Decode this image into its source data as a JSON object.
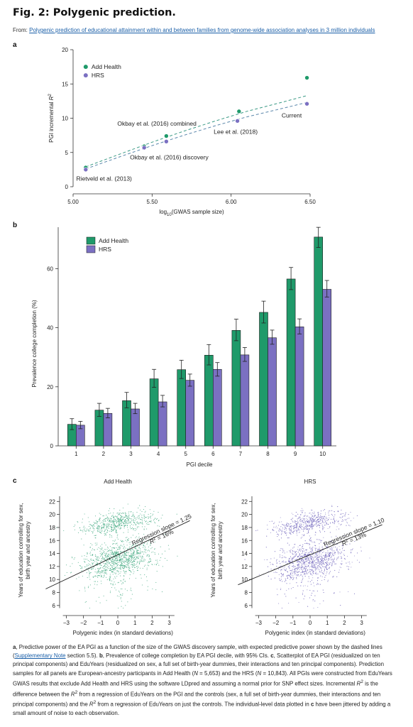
{
  "figure": {
    "title": "Fig. 2: Polygenic prediction.",
    "source_prefix": "From:",
    "source_link": "Polygenic prediction of educational attainment within and between families from genome-wide association analyses in 3 million individuals"
  },
  "colors": {
    "add_health": "#1f9a6a",
    "hrs": "#7b70c2",
    "text": "#222222",
    "link": "#1a5fa8"
  },
  "panels": {
    "a": {
      "letter": "a"
    },
    "b": {
      "letter": "b"
    },
    "c": {
      "letter": "c",
      "left_title": "Add Health",
      "right_title": "HRS"
    }
  },
  "chart_data": [
    {
      "panel": "a",
      "type": "scatter",
      "xlabel_prefix": "log",
      "xlabel_sub": "10",
      "xlabel_suffix": "(GWAS sample size)",
      "ylabel_prefix": "PGI incremental ",
      "ylabel_italic": "R",
      "ylabel_sup": "2",
      "xlim": [
        5.0,
        6.5
      ],
      "ylim": [
        0,
        20
      ],
      "xticks": [
        "5.00",
        "5.50",
        "6.00",
        "6.50"
      ],
      "yticks": [
        "0",
        "5",
        "10",
        "15",
        "20"
      ],
      "legend": [
        "Add Health",
        "HRS"
      ],
      "series": [
        {
          "name": "Add Health",
          "x": [
            5.08,
            5.45,
            5.59,
            6.05,
            6.48
          ],
          "y": [
            2.8,
            5.9,
            7.4,
            11.0,
            15.9
          ]
        },
        {
          "name": "HRS",
          "x": [
            5.08,
            5.45,
            5.59,
            6.04,
            6.48
          ],
          "y": [
            2.5,
            5.7,
            6.6,
            9.6,
            12.1
          ]
        }
      ],
      "fit_lines": [
        {
          "name": "Add Health",
          "x": [
            5.08,
            5.3,
            5.5,
            5.7,
            5.9,
            6.1,
            6.3,
            6.48
          ],
          "y": [
            2.9,
            4.8,
            6.5,
            8.1,
            9.6,
            11.0,
            12.2,
            13.3
          ]
        },
        {
          "name": "HRS",
          "x": [
            5.08,
            5.3,
            5.5,
            5.7,
            5.9,
            6.1,
            6.3,
            6.48
          ],
          "y": [
            2.6,
            4.4,
            6.0,
            7.5,
            8.9,
            10.2,
            11.3,
            12.3
          ]
        }
      ],
      "annotations": [
        {
          "text": "Rietveld et al. (2013)",
          "x": 5.02,
          "y": 0.9
        },
        {
          "text": "Okbay et al. (2016) discovery",
          "x": 5.36,
          "y": 4.0
        },
        {
          "text": "Okbay et al. (2016) combined",
          "x": 5.28,
          "y": 8.9
        },
        {
          "text": "Lee et al. (2018)",
          "x": 5.89,
          "y": 7.7
        },
        {
          "text": "Current",
          "x": 6.32,
          "y": 10.1
        }
      ]
    },
    {
      "panel": "b",
      "type": "bar",
      "xlabel": "PGI decile",
      "ylabel": "Prevalence college completion (%)",
      "ylim": [
        0,
        75
      ],
      "yticks": [
        "0",
        "20",
        "40",
        "60"
      ],
      "categories": [
        "1",
        "2",
        "3",
        "4",
        "5",
        "6",
        "7",
        "8",
        "9",
        "10"
      ],
      "legend": [
        "Add Health",
        "HRS"
      ],
      "series": [
        {
          "name": "Add Health",
          "values": [
            7.3,
            12.1,
            15.3,
            22.7,
            25.8,
            30.7,
            39.1,
            45.2,
            56.5,
            70.7
          ],
          "ci_low": [
            5.5,
            10.0,
            12.9,
            19.8,
            22.8,
            27.4,
            35.6,
            41.6,
            52.9,
            67.2
          ],
          "ci_high": [
            9.2,
            14.4,
            18.1,
            25.9,
            29.0,
            34.3,
            42.9,
            49.0,
            60.4,
            74.0
          ]
        },
        {
          "name": "HRS",
          "values": [
            7.0,
            11.0,
            12.5,
            14.9,
            22.2,
            25.9,
            30.8,
            36.6,
            40.3,
            53.0
          ],
          "ci_low": [
            5.8,
            9.5,
            10.9,
            13.2,
            20.2,
            23.6,
            28.6,
            34.4,
            37.9,
            50.4
          ],
          "ci_high": [
            8.3,
            12.7,
            14.4,
            17.1,
            24.3,
            28.2,
            33.3,
            39.2,
            43.0,
            56.0
          ]
        }
      ]
    },
    {
      "panel": "c",
      "type": "scatter",
      "xlabel": "Polygenic index (in standard deviations)",
      "ylabel_line1": "Years of education controlling for sex,",
      "ylabel_line2": "birth year and ancestry",
      "xticks": [
        "−3",
        "−2",
        "−1",
        "0",
        "1",
        "2",
        "3"
      ],
      "yticks": [
        "6",
        "8",
        "10",
        "12",
        "14",
        "16",
        "18",
        "20",
        "22"
      ],
      "xlim": [
        -4.3,
        4.3
      ],
      "ylim": [
        5,
        24
      ],
      "plots": [
        {
          "name": "Add Health",
          "slope": 1.25,
          "r2_percent": 16,
          "slope_label": "Regression slope = 1.25",
          "r2_prefix": "R",
          "r2_suffix": " = 16%",
          "cluster_high_mean": 18.8,
          "cluster_low_mean": 13.0,
          "n_points": 1700
        },
        {
          "name": "HRS",
          "slope": 1.1,
          "r2_percent": 13,
          "slope_label": "Regression slope = 1.10",
          "r2_prefix": "R",
          "r2_suffix": " = 13%",
          "cluster_high_mean": 18.8,
          "cluster_low_mean": 12.7,
          "n_points": 2600
        }
      ]
    }
  ],
  "caption": {
    "p1_a": "a",
    "p1_text1": ", Predictive power of the EA PGI as a function of the size of the GWAS discovery sample, with expected predictive power shown by the dashed lines (",
    "p1_link": "Supplementary Note",
    "p1_text2": " section 5.5). ",
    "p1_b": "b",
    "p1_text3": ", Prevalence of college completion by EA PGI decile, with 95% CIs. ",
    "p1_c": "c",
    "p1_text4": ", Scatterplot of EA PGI (residualized on ten principal components) and EduYears (residualized on sex, a full set of birth-year dummies, their interactions and ten principal components). Prediction samples for all panels are European-ancestry participants in Add Health (",
    "p1_n1": "N",
    "p1_text5": " = 5,653) and the HRS (",
    "p1_n2": "N",
    "p1_text6": " = 10,843). All PGIs were constructed from EduYears GWAS results that exclude Add Health and HRS using the software LDpred and assuming a normal prior for SNP effect sizes. Incremental ",
    "p1_r1": "R",
    "p1_text7": " is the difference between the ",
    "p1_r2": "R",
    "p1_text8": " from a regression of EduYears on the PGI and the controls (sex, a full set of birth-year dummies, their interactions and ten principal components) and the ",
    "p1_r3": "R",
    "p1_text9": " from a regression of EduYears on just the controls. The individual-level data plotted in ",
    "p1_c2": "c",
    "p1_text10": " have been jittered by adding a small amount of noise to each observation.",
    "sup": "2"
  }
}
